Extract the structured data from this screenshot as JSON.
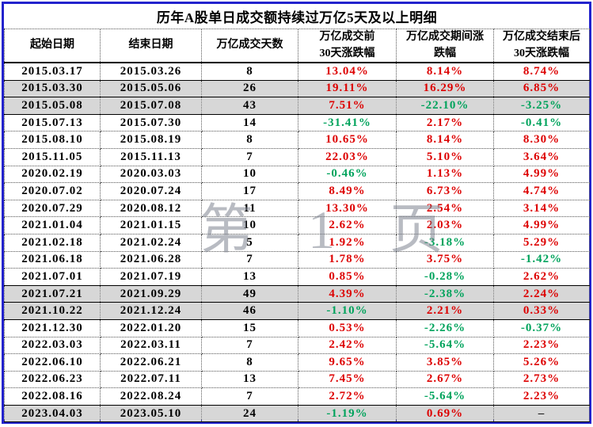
{
  "title": "历年A股单日成交额持续过万亿5天及以上明细",
  "watermark": "第 1 页",
  "colors": {
    "positive_text": "#dd0000",
    "negative_text": "#00a35c",
    "neutral_text": "#1a1a1a",
    "highlight_row_bg": "#d7d7d7",
    "frame_border": "#2323cd"
  },
  "chart_data": {
    "type": "table",
    "title": "历年A股单日成交额持续过万亿5天及以上明细",
    "columns": [
      "起始日期",
      "结束日期",
      "万亿成交天数",
      "万亿成交前\n30天涨跌幅",
      "万亿成交期间涨\n跌幅",
      "万亿成交结束后\n30天涨跌幅"
    ],
    "rows": [
      {
        "start_date": "2015.03.17",
        "end_date": "2015.03.26",
        "days": 8,
        "chg_before": "13.04%",
        "chg_during": "8.14%",
        "chg_after": "8.74%",
        "highlight": false
      },
      {
        "start_date": "2015.03.30",
        "end_date": "2015.05.06",
        "days": 26,
        "chg_before": "19.11%",
        "chg_during": "16.29%",
        "chg_after": "6.85%",
        "highlight": true
      },
      {
        "start_date": "2015.05.08",
        "end_date": "2015.07.08",
        "days": 43,
        "chg_before": "7.51%",
        "chg_during": "-22.10%",
        "chg_after": "-3.25%",
        "highlight": true
      },
      {
        "start_date": "2015.07.13",
        "end_date": "2015.07.30",
        "days": 14,
        "chg_before": "-31.41%",
        "chg_during": "2.17%",
        "chg_after": "-0.41%",
        "highlight": false
      },
      {
        "start_date": "2015.08.10",
        "end_date": "2015.08.19",
        "days": 8,
        "chg_before": "10.65%",
        "chg_during": "8.14%",
        "chg_after": "8.30%",
        "highlight": false
      },
      {
        "start_date": "2015.11.05",
        "end_date": "2015.11.13",
        "days": 7,
        "chg_before": "22.03%",
        "chg_during": "5.10%",
        "chg_after": "3.64%",
        "highlight": false
      },
      {
        "start_date": "2020.02.19",
        "end_date": "2020.03.03",
        "days": 10,
        "chg_before": "-0.46%",
        "chg_during": "1.13%",
        "chg_after": "4.99%",
        "highlight": false
      },
      {
        "start_date": "2020.07.02",
        "end_date": "2020.07.24",
        "days": 17,
        "chg_before": "8.49%",
        "chg_during": "6.73%",
        "chg_after": "4.74%",
        "highlight": false
      },
      {
        "start_date": "2020.07.29",
        "end_date": "2020.08.12",
        "days": 11,
        "chg_before": "13.30%",
        "chg_during": "2.54%",
        "chg_after": "3.14%",
        "highlight": false
      },
      {
        "start_date": "2021.01.04",
        "end_date": "2021.01.15",
        "days": 10,
        "chg_before": "2.62%",
        "chg_during": "2.03%",
        "chg_after": "4.99%",
        "highlight": false
      },
      {
        "start_date": "2021.02.18",
        "end_date": "2021.02.24",
        "days": 5,
        "chg_before": "1.92%",
        "chg_during": "-3.18%",
        "chg_after": "5.29%",
        "highlight": false
      },
      {
        "start_date": "2021.06.18",
        "end_date": "2021.06.28",
        "days": 7,
        "chg_before": "1.78%",
        "chg_during": "3.75%",
        "chg_after": "-1.42%",
        "highlight": false
      },
      {
        "start_date": "2021.07.01",
        "end_date": "2021.07.19",
        "days": 13,
        "chg_before": "0.85%",
        "chg_during": "-0.28%",
        "chg_after": "2.62%",
        "highlight": false
      },
      {
        "start_date": "2021.07.21",
        "end_date": "2021.09.29",
        "days": 49,
        "chg_before": "4.39%",
        "chg_during": "-2.38%",
        "chg_after": "2.24%",
        "highlight": true
      },
      {
        "start_date": "2021.10.22",
        "end_date": "2021.12.24",
        "days": 46,
        "chg_before": "-1.10%",
        "chg_during": "2.21%",
        "chg_after": "0.33%",
        "highlight": true
      },
      {
        "start_date": "2021.12.30",
        "end_date": "2022.01.20",
        "days": 15,
        "chg_before": "0.53%",
        "chg_during": "-2.26%",
        "chg_after": "-0.37%",
        "highlight": false
      },
      {
        "start_date": "2022.03.03",
        "end_date": "2022.03.11",
        "days": 7,
        "chg_before": "2.42%",
        "chg_during": "-5.64%",
        "chg_after": "2.23%",
        "highlight": false
      },
      {
        "start_date": "2022.06.10",
        "end_date": "2022.06.21",
        "days": 8,
        "chg_before": "9.65%",
        "chg_during": "3.85%",
        "chg_after": "5.26%",
        "highlight": false
      },
      {
        "start_date": "2022.06.23",
        "end_date": "2022.07.11",
        "days": 13,
        "chg_before": "7.45%",
        "chg_during": "2.67%",
        "chg_after": "2.73%",
        "highlight": false
      },
      {
        "start_date": "2022.08.16",
        "end_date": "2022.08.24",
        "days": 7,
        "chg_before": "2.72%",
        "chg_during": "-5.64%",
        "chg_after": "2.23%",
        "highlight": false
      },
      {
        "start_date": "2023.04.03",
        "end_date": "2023.05.10",
        "days": 24,
        "chg_before": "-1.19%",
        "chg_during": "0.69%",
        "chg_after": "–",
        "highlight": true
      }
    ]
  }
}
